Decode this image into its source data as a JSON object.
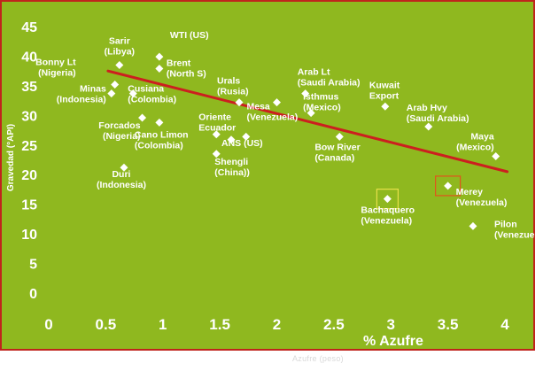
{
  "chart_data": {
    "type": "scatter",
    "xlabel": "% Azufre",
    "ylabel": "Gravedad (°API)",
    "xlim": [
      0,
      4
    ],
    "ylim": [
      0,
      45
    ],
    "xticks": [
      "0",
      "0.5",
      "1",
      "1.5",
      "2",
      "2.5",
      "3",
      "3.5",
      "4"
    ],
    "yticks": [
      "0",
      "5",
      "10",
      "15",
      "20",
      "25",
      "30",
      "35",
      "40",
      "45"
    ],
    "grid": false,
    "points": [
      {
        "label": [
          "Sarir",
          "(Libya)"
        ],
        "x": 0.62,
        "y": 38.5
      },
      {
        "label": [
          "WTI (US)"
        ],
        "x": 0.97,
        "y": 39.9
      },
      {
        "label": [
          "Brent",
          "(North S)"
        ],
        "x": 0.97,
        "y": 37.9
      },
      {
        "label": [
          "Bonny Lt",
          "(Nigeria)"
        ],
        "x": 0.58,
        "y": 35.2
      },
      {
        "label": [
          "Minas",
          "(Indonesia)"
        ],
        "x": 0.55,
        "y": 33.7
      },
      {
        "label": [
          "Cusiana",
          "(Colombia)"
        ],
        "x": 0.74,
        "y": 33.7
      },
      {
        "label": [
          "Forcados",
          "(Nigeria)"
        ],
        "x": 0.82,
        "y": 29.6
      },
      {
        "label": [
          "Cano Limon",
          "(Colombia)"
        ],
        "x": 0.97,
        "y": 28.8
      },
      {
        "label": [
          "Duri",
          "(Indonesia)"
        ],
        "x": 0.66,
        "y": 21.2
      },
      {
        "label": [
          "Oriente",
          "Ecuador"
        ],
        "x": 1.47,
        "y": 26.8
      },
      {
        "label": [
          "Shengli",
          "(China))"
        ],
        "x": 1.47,
        "y": 23.5
      },
      {
        "label": [
          "ANS (US)"
        ],
        "x": 1.6,
        "y": 25.9
      },
      {
        "label": [
          "Urals",
          "(Rusia)"
        ],
        "x": 1.67,
        "y": 32.2
      },
      {
        "label": [
          "Mesa",
          "(Venezuela)"
        ],
        "x": 2.0,
        "y": 32.2
      },
      {
        "label": [],
        "x": 1.73,
        "y": 26.4
      },
      {
        "label": [
          "Arab Lt",
          "(Saudi Arabia)"
        ],
        "x": 2.25,
        "y": 33.7
      },
      {
        "label": [
          "Isthmus",
          "(Mexico)"
        ],
        "x": 2.3,
        "y": 30.4
      },
      {
        "label": [
          "Bow River",
          "(Canada)"
        ],
        "x": 2.55,
        "y": 26.4
      },
      {
        "label": [
          "Kuwait",
          "Export"
        ],
        "x": 2.95,
        "y": 31.5
      },
      {
        "label": [
          "Arab Hvy",
          "(Saudi Arabia)"
        ],
        "x": 3.33,
        "y": 28.1
      },
      {
        "label": [
          "Maya",
          "(Mexico)"
        ],
        "x": 3.92,
        "y": 23.1
      },
      {
        "label": [
          "Bachaquero",
          "(Venezuela)"
        ],
        "x": 2.97,
        "y": 15.9
      },
      {
        "label": [
          "Merey",
          "(Venezuela)"
        ],
        "x": 3.5,
        "y": 18.1
      },
      {
        "label": [
          "Pilon",
          "(Venezuela)"
        ],
        "x": 3.72,
        "y": 11.3
      }
    ],
    "highlighted": [
      "Bachaquero",
      "Merey"
    ],
    "trendline": {
      "x": [
        0.52,
        4.02
      ],
      "y": [
        37.5,
        20.5
      ]
    },
    "colors": {
      "plot_bg": "#8fb81f",
      "text": "#ffffff",
      "trendline": "#cc1f1f",
      "border": "#c0241c",
      "highlight_bachaquero": "#e8e04a",
      "highlight_merey": "#e0541c"
    }
  },
  "footer_caption": "Azufre (peso)"
}
